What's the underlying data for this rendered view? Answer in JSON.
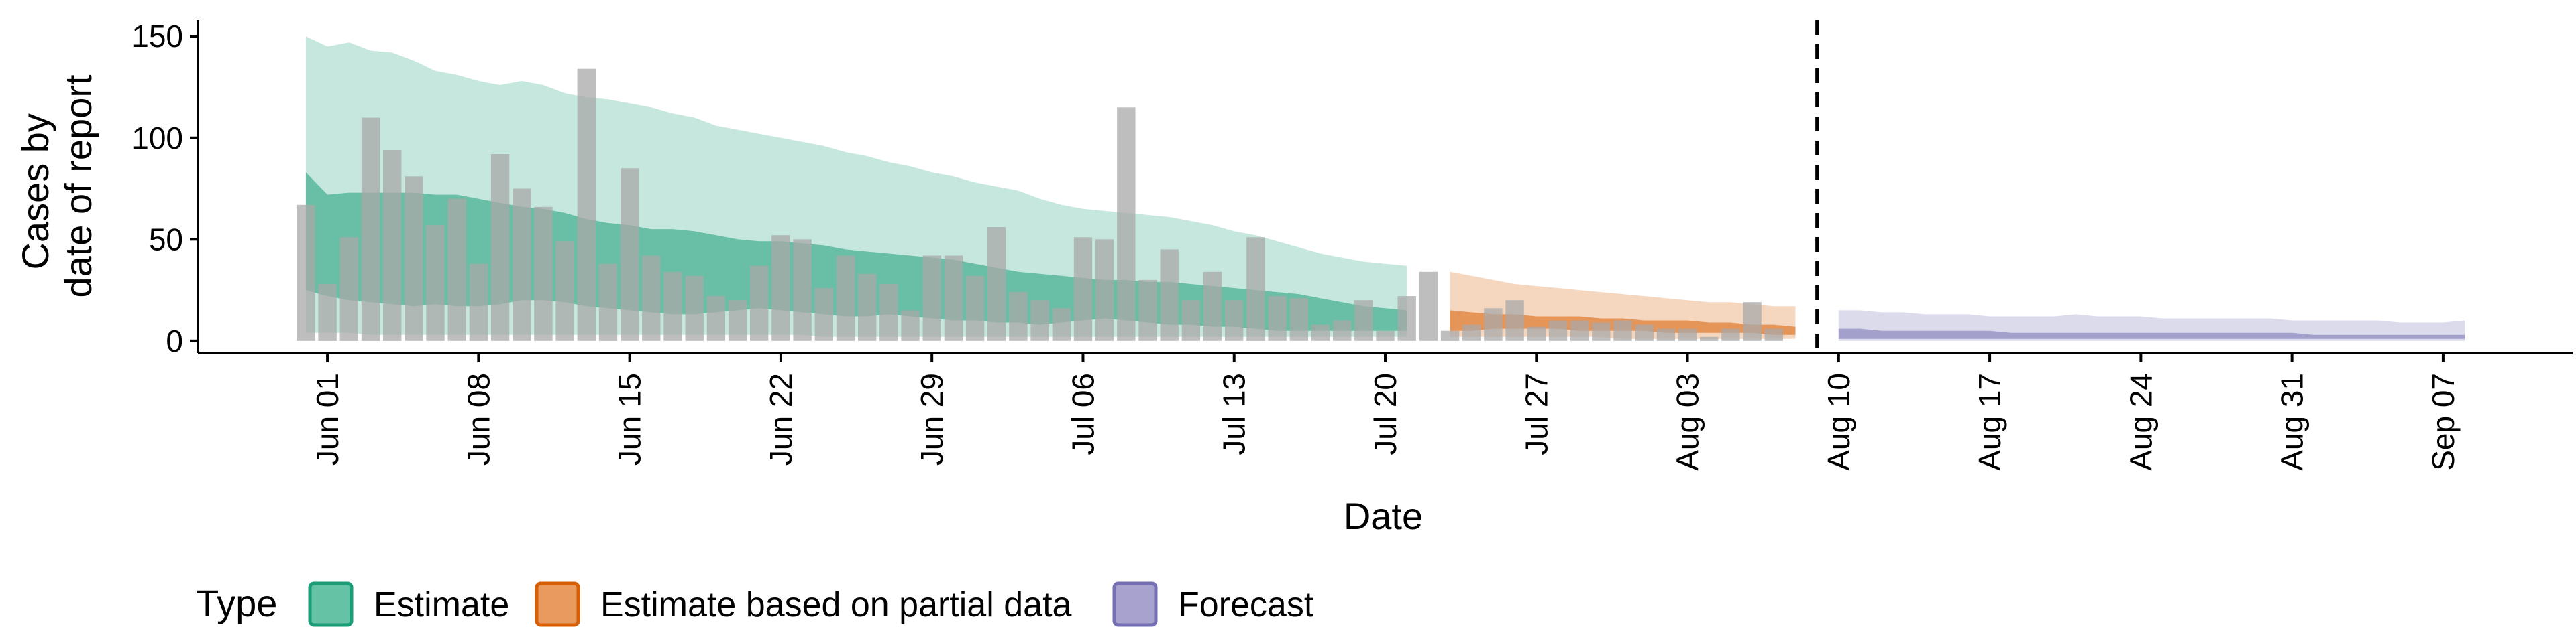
{
  "chart_data": {
    "type": "bar",
    "xlabel": "Date",
    "ylabel_lines": [
      "Cases by",
      "date of report"
    ],
    "ylim": [
      -6,
      158
    ],
    "yticks": [
      0,
      50,
      100,
      150
    ],
    "x_domain": [
      "2020-05-26",
      "2020-09-13"
    ],
    "xticks": [
      {
        "date": "2020-06-01",
        "label": "Jun 01"
      },
      {
        "date": "2020-06-08",
        "label": "Jun 08"
      },
      {
        "date": "2020-06-15",
        "label": "Jun 15"
      },
      {
        "date": "2020-06-22",
        "label": "Jun 22"
      },
      {
        "date": "2020-06-29",
        "label": "Jun 29"
      },
      {
        "date": "2020-07-06",
        "label": "Jul 06"
      },
      {
        "date": "2020-07-13",
        "label": "Jul 13"
      },
      {
        "date": "2020-07-20",
        "label": "Jul 20"
      },
      {
        "date": "2020-07-27",
        "label": "Jul 27"
      },
      {
        "date": "2020-08-03",
        "label": "Aug 03"
      },
      {
        "date": "2020-08-10",
        "label": "Aug 10"
      },
      {
        "date": "2020-08-17",
        "label": "Aug 17"
      },
      {
        "date": "2020-08-24",
        "label": "Aug 24"
      },
      {
        "date": "2020-08-31",
        "label": "Aug 31"
      },
      {
        "date": "2020-09-07",
        "label": "Sep 07"
      }
    ],
    "vline_date": "2020-08-09",
    "observed": {
      "start_date": "2020-05-31",
      "values": [
        67,
        28,
        51,
        110,
        94,
        81,
        57,
        70,
        38,
        92,
        75,
        66,
        49,
        134,
        38,
        85,
        42,
        34,
        32,
        22,
        20,
        37,
        52,
        50,
        26,
        42,
        33,
        28,
        15,
        42,
        42,
        32,
        56,
        24,
        20,
        16,
        51,
        50,
        115,
        30,
        45,
        20,
        34,
        20,
        51,
        22,
        21,
        8,
        10,
        20,
        5,
        22,
        34,
        5,
        8,
        16,
        20,
        7,
        10,
        10,
        9,
        10,
        8,
        6,
        6,
        2,
        6,
        19,
        6
      ]
    },
    "ribbons": [
      {
        "type": "Estimate",
        "start_date": "2020-05-31",
        "outer_low": [
          4,
          4,
          4,
          3,
          3,
          3,
          3,
          3,
          3,
          3,
          3,
          3,
          3,
          3,
          3,
          3,
          3,
          3,
          3,
          3,
          3,
          3,
          3,
          3,
          2,
          2,
          2,
          2,
          2,
          2,
          2,
          2,
          2,
          2,
          2,
          2,
          2,
          2,
          2,
          2,
          2,
          2,
          2,
          2,
          2,
          2,
          2,
          2,
          2,
          2,
          2,
          2
        ],
        "outer_high": [
          150,
          145,
          147,
          143,
          142,
          138,
          133,
          131,
          128,
          126,
          128,
          126,
          122,
          120,
          119,
          117,
          115,
          112,
          110,
          106,
          104,
          102,
          100,
          98,
          96,
          93,
          91,
          88,
          86,
          83,
          81,
          78,
          76,
          74,
          70,
          67,
          65,
          64,
          63,
          62,
          61,
          59,
          57,
          54,
          52,
          49,
          46,
          43,
          41,
          39,
          38,
          37
        ],
        "inner_low": [
          25,
          22,
          20,
          19,
          18,
          17,
          18,
          17,
          17,
          18,
          20,
          20,
          19,
          17,
          16,
          15,
          14,
          13,
          13,
          14,
          15,
          16,
          15,
          14,
          13,
          12,
          12,
          13,
          12,
          11,
          10,
          10,
          9,
          9,
          8,
          9,
          10,
          11,
          10,
          9,
          8,
          8,
          7,
          7,
          6,
          5,
          5,
          5,
          5,
          5,
          5,
          5
        ],
        "inner_high": [
          83,
          72,
          73,
          73,
          73,
          73,
          72,
          72,
          70,
          68,
          66,
          65,
          63,
          60,
          58,
          57,
          55,
          55,
          54,
          52,
          50,
          49,
          49,
          48,
          47,
          45,
          44,
          43,
          42,
          41,
          40,
          38,
          36,
          34,
          33,
          32,
          31,
          30,
          30,
          29,
          29,
          28,
          27,
          26,
          25,
          24,
          23,
          21,
          19,
          17,
          16,
          15
        ]
      },
      {
        "type": "Estimate based on partial data",
        "start_date": "2020-07-23",
        "outer_low": [
          2,
          2,
          2,
          2,
          2,
          2,
          2,
          2,
          1,
          1,
          1,
          1,
          1,
          1,
          1,
          1,
          1
        ],
        "outer_high": [
          34,
          32,
          30,
          28,
          27,
          26,
          25,
          24,
          23,
          22,
          21,
          20,
          19,
          19,
          18,
          17,
          17
        ],
        "inner_low": [
          5,
          5,
          6,
          6,
          6,
          6,
          5,
          5,
          5,
          5,
          4,
          4,
          4,
          4,
          4,
          3,
          3
        ],
        "inner_high": [
          15,
          14,
          13,
          13,
          12,
          12,
          12,
          11,
          11,
          10,
          10,
          10,
          9,
          9,
          8,
          8,
          7
        ]
      },
      {
        "type": "Forecast",
        "start_date": "2020-08-10",
        "outer_low": [
          0,
          0,
          0,
          0,
          0,
          0,
          0,
          0,
          0,
          0,
          0,
          0,
          0,
          0,
          0,
          0,
          0,
          0,
          0,
          0,
          0,
          0,
          0,
          0,
          0,
          0,
          0,
          0,
          0,
          0
        ],
        "outer_high": [
          15,
          15,
          14,
          14,
          13,
          13,
          13,
          12,
          12,
          12,
          12,
          13,
          12,
          12,
          12,
          11,
          11,
          11,
          11,
          11,
          11,
          10,
          10,
          10,
          10,
          10,
          9,
          9,
          9,
          10
        ],
        "inner_low": [
          1,
          1,
          1,
          1,
          1,
          1,
          1,
          1,
          1,
          1,
          1,
          1,
          1,
          1,
          1,
          1,
          1,
          1,
          1,
          1,
          1,
          1,
          1,
          1,
          1,
          1,
          1,
          1,
          1,
          1
        ],
        "inner_high": [
          6,
          6,
          5,
          5,
          5,
          5,
          5,
          5,
          4,
          4,
          4,
          4,
          4,
          4,
          4,
          4,
          4,
          4,
          4,
          4,
          4,
          4,
          3,
          3,
          3,
          3,
          3,
          3,
          3,
          3
        ]
      }
    ],
    "legend": {
      "title": "Type",
      "position": "bottom-left",
      "entries": [
        {
          "label": "Estimate",
          "fill": "#66c2a5",
          "stroke": "#1b9e77"
        },
        {
          "label": "Estimate based on partial data",
          "fill": "#e99a5e",
          "stroke": "#d95f02"
        },
        {
          "label": "Forecast",
          "fill": "#a7a3ce",
          "stroke": "#7570b3"
        }
      ]
    },
    "colors": {
      "Estimate": "#1b9e77",
      "Estimate based on partial data": "#d95f02",
      "Forecast": "#7570b3",
      "bars": "#a8a8a8"
    }
  }
}
